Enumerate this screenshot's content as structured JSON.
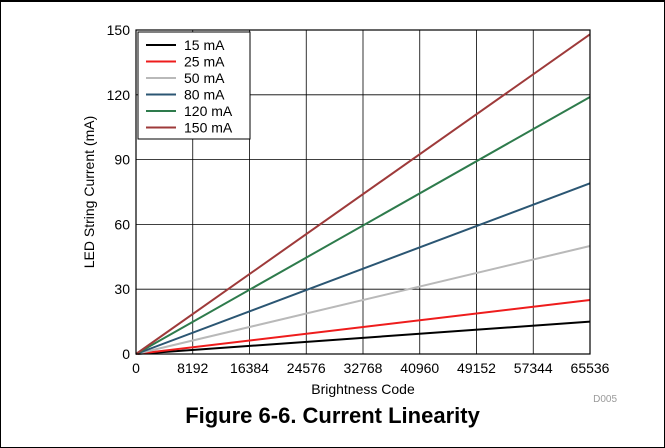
{
  "figure": {
    "caption": "Figure 6-6. Current Linearity",
    "code": "D005"
  },
  "chart_data": {
    "type": "line",
    "xlabel": "Brightness Code",
    "ylabel": "LED String Current (mA)",
    "xlim": [
      0,
      65536
    ],
    "ylim": [
      0,
      150
    ],
    "xticks": [
      0,
      8192,
      16384,
      24576,
      32768,
      40960,
      49152,
      57344,
      65536
    ],
    "yticks": [
      0,
      30,
      60,
      90,
      120,
      150
    ],
    "grid": true,
    "legend_position": "top-left",
    "series": [
      {
        "name": "15 mA",
        "color": "#000000",
        "x": [
          0,
          65536
        ],
        "y": [
          0,
          15
        ]
      },
      {
        "name": "25 mA",
        "color": "#ee1c1c",
        "x": [
          0,
          65536
        ],
        "y": [
          0,
          25
        ]
      },
      {
        "name": "50 mA",
        "color": "#b9b9b9",
        "x": [
          0,
          65536
        ],
        "y": [
          0,
          50
        ]
      },
      {
        "name": "80 mA",
        "color": "#2b5673",
        "x": [
          0,
          65536
        ],
        "y": [
          0,
          79
        ]
      },
      {
        "name": "120 mA",
        "color": "#2e7b4c",
        "x": [
          0,
          65536
        ],
        "y": [
          0,
          119
        ]
      },
      {
        "name": "150 mA",
        "color": "#9e3a3a",
        "x": [
          0,
          65536
        ],
        "y": [
          0,
          148
        ]
      }
    ]
  }
}
